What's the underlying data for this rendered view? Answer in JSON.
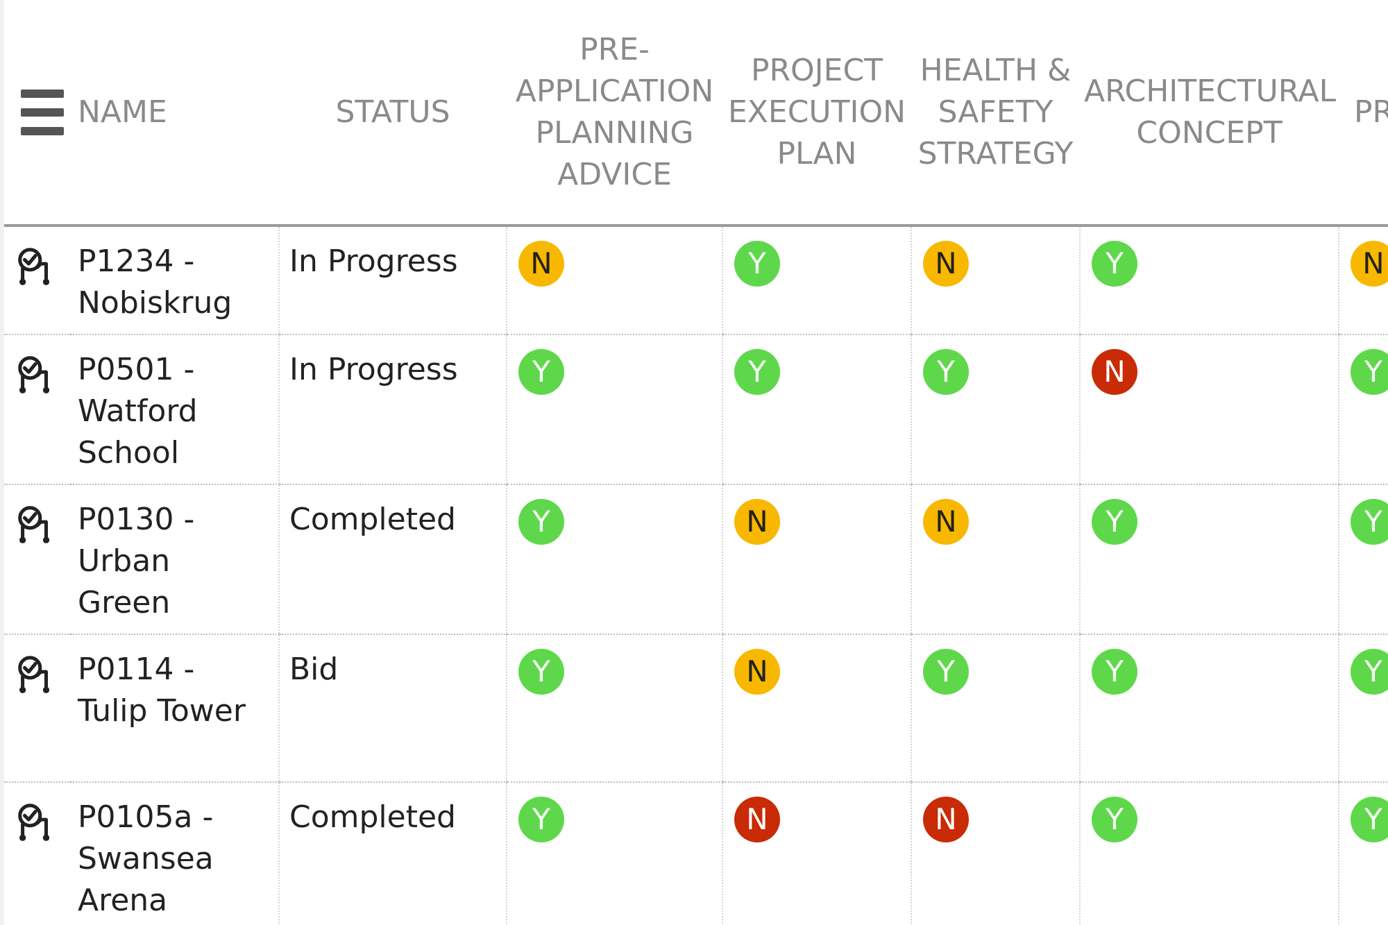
{
  "header": {
    "name": "NAME",
    "status": "STATUS",
    "pre_application": "PRE-APPLICATION PLANNING ADVICE",
    "project_execution": "PROJECT EXECUTION PLAN",
    "health_safety": "HEALTH & SAFETY STRATEGY",
    "architectural": "ARCHITECTURAL CONCEPT",
    "pd": "PR DE"
  },
  "colors": {
    "yes": "#5ed84a",
    "no_amber": "#f8b800",
    "no_red": "#c82b06"
  },
  "icons": {
    "menu": "hamburger-menu-icon",
    "row": "project-workflow-icon"
  },
  "rows": [
    {
      "name": "P1234 - Nobiskrug",
      "status": "In Progress",
      "pre": "N",
      "exec": "Y",
      "hs": "N",
      "arch": "Y",
      "pd": "N"
    },
    {
      "name": "P0501 - Watford School",
      "status": "In Progress",
      "pre": "Y",
      "exec": "Y",
      "hs": "Y",
      "arch": "N",
      "pd": "Y"
    },
    {
      "name": "P0130 - Urban Green",
      "status": "Completed",
      "pre": "Y",
      "exec": "N",
      "hs": "N",
      "arch": "Y",
      "pd": "Y"
    },
    {
      "name": "P0114 - Tulip Tower",
      "status": "Bid",
      "pre": "Y",
      "exec": "N",
      "hs": "Y",
      "arch": "Y",
      "pd": "Y"
    },
    {
      "name": "P0105a - Swansea Arena",
      "status": "Completed",
      "pre": "Y",
      "exec": "N",
      "hs": "N",
      "arch": "Y",
      "pd": "Y"
    }
  ]
}
